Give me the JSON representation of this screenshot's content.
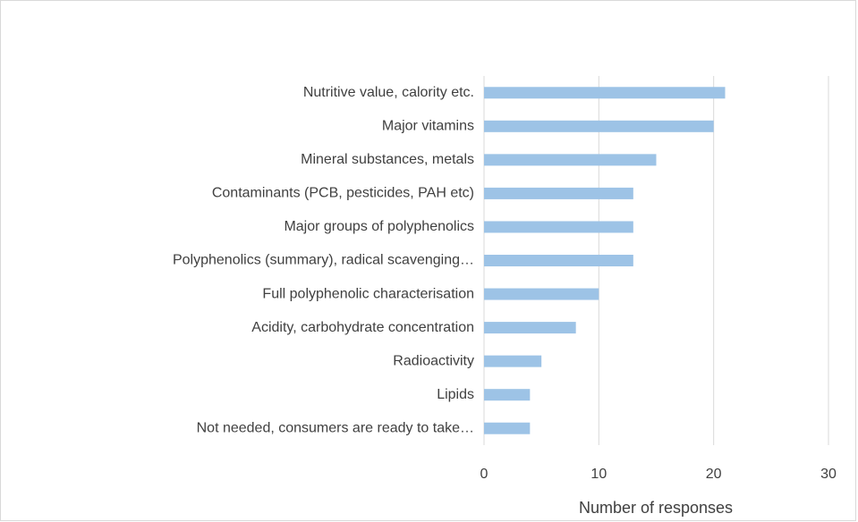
{
  "chart_data": {
    "type": "barh",
    "categories": [
      "Nutritive value, calority etc.",
      "Major vitamins",
      "Mineral substances, metals",
      "Contaminants (PCB, pesticides, PAH etc)",
      "Major groups of polyphenolics",
      "Polyphenolics (summary), radical scavenging…",
      "Full polyphenolic characterisation",
      "Acidity, carbohydrate concentration",
      "Radioactivity",
      "Lipids",
      "Not needed, consumers are ready to take…"
    ],
    "values": [
      21,
      20,
      15,
      13,
      13,
      13,
      10,
      8,
      5,
      4,
      4
    ],
    "color": "#9dc3e6",
    "xlabel": "Number of responses",
    "xlim": [
      0,
      30
    ],
    "xticks": [
      0,
      10,
      20,
      30
    ],
    "grid": true
  }
}
